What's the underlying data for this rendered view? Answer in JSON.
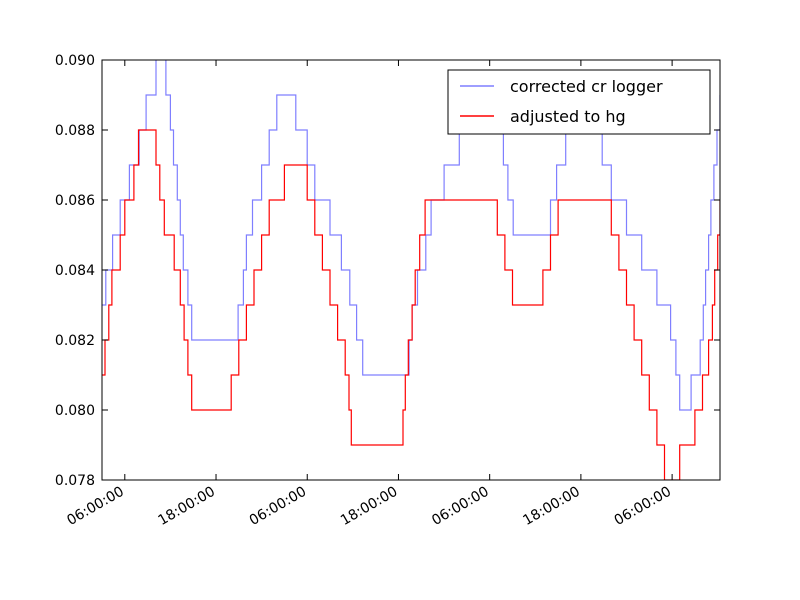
{
  "chart_data": {
    "type": "line",
    "title": "",
    "xlabel": "",
    "ylabel": "",
    "ylim": [
      0.078,
      0.09
    ],
    "y_ticks": [
      0.078,
      0.08,
      0.082,
      0.084,
      0.086,
      0.088,
      0.09
    ],
    "y_tick_labels": [
      "0.078",
      "0.080",
      "0.082",
      "0.084",
      "0.086",
      "0.088",
      "0.090"
    ],
    "x_axis_unit": "hours",
    "xlim": [
      3.0,
      84.3
    ],
    "x_ticks": [
      6,
      18,
      30,
      42,
      54,
      66,
      78
    ],
    "x_tick_labels": [
      "06:00:00",
      "18:00:00",
      "06:00:00",
      "18:00:00",
      "06:00:00",
      "18:00:00",
      "06:00:00"
    ],
    "legend": {
      "position": "upper right",
      "entries": [
        "corrected cr logger",
        "adjusted to hg"
      ]
    },
    "series": [
      {
        "name": "corrected cr logger",
        "color": "#7f7fff",
        "x": [
          3.0,
          3.2,
          3.5,
          4.0,
          4.4,
          5.0,
          5.4,
          6.0,
          6.6,
          7.2,
          7.9,
          8.2,
          8.8,
          9.6,
          10.1,
          10.6,
          11.4,
          12.0,
          12.4,
          12.9,
          13.3,
          13.7,
          14.3,
          14.8,
          16.0,
          20.0,
          20.9,
          21.6,
          22.0,
          22.4,
          22.8,
          23.4,
          24.0,
          24.5,
          25.0,
          25.5,
          26.0,
          26.6,
          27.2,
          27.8,
          28.5,
          30.0,
          31.0,
          33.0,
          34.5,
          35.6,
          36.5,
          37.0,
          37.3,
          37.7,
          38.2,
          39.0,
          43.0,
          43.4,
          43.8,
          44.5,
          45.0,
          45.6,
          46.3,
          48.0,
          50.0,
          52.0,
          54.5,
          55.2,
          55.8,
          56.4,
          57.1,
          58.0,
          59.5,
          60.5,
          61.2,
          62.0,
          62.8,
          64.0,
          66.0,
          68.0,
          68.8,
          70.0,
          72.0,
          74.0,
          76.0,
          77.8,
          78.5,
          79.0,
          80.5,
          81.3,
          81.7,
          82.1,
          82.4,
          82.8,
          83.1,
          83.5,
          83.9,
          84.3
        ],
        "y": [
          0.083,
          0.083,
          0.084,
          0.084,
          0.085,
          0.085,
          0.086,
          0.086,
          0.087,
          0.087,
          0.088,
          0.088,
          0.089,
          0.089,
          0.0902,
          0.0902,
          0.089,
          0.088,
          0.087,
          0.086,
          0.085,
          0.084,
          0.083,
          0.082,
          0.082,
          0.082,
          0.083,
          0.084,
          0.085,
          0.085,
          0.086,
          0.086,
          0.087,
          0.087,
          0.088,
          0.088,
          0.089,
          0.089,
          0.089,
          0.089,
          0.088,
          0.087,
          0.086,
          0.085,
          0.084,
          0.083,
          0.082,
          0.082,
          0.081,
          0.081,
          0.081,
          0.081,
          0.081,
          0.082,
          0.083,
          0.084,
          0.084,
          0.085,
          0.086,
          0.087,
          0.088,
          0.089,
          0.089,
          0.088,
          0.087,
          0.086,
          0.085,
          0.085,
          0.085,
          0.085,
          0.085,
          0.086,
          0.087,
          0.088,
          0.089,
          0.088,
          0.087,
          0.086,
          0.085,
          0.084,
          0.083,
          0.082,
          0.081,
          0.08,
          0.081,
          0.081,
          0.082,
          0.083,
          0.084,
          0.085,
          0.086,
          0.087,
          0.088,
          0.089
        ]
      },
      {
        "name": "adjusted to hg",
        "color": "#ff0000",
        "x": [
          3.0,
          3.4,
          3.9,
          4.3,
          4.8,
          5.4,
          6.0,
          6.6,
          7.2,
          7.8,
          8.4,
          9.0,
          9.6,
          10.1,
          10.6,
          11.2,
          12.5,
          13.3,
          13.8,
          14.3,
          14.8,
          15.3,
          16.0,
          17.0,
          17.5,
          17.8,
          18.0,
          18.5,
          19.0,
          20.0,
          21.0,
          22.0,
          23.0,
          24.0,
          25.0,
          26.0,
          27.0,
          27.8,
          29.0,
          30.0,
          31.0,
          32.0,
          33.0,
          34.0,
          35.0,
          35.5,
          35.8,
          36.0,
          36.3,
          36.8,
          37.5,
          38.2,
          39.0,
          42.5,
          42.6,
          42.9,
          43.3,
          43.8,
          44.2,
          44.8,
          45.5,
          46.0,
          47.0,
          48.0,
          49.0,
          50.0,
          51.0,
          52.0,
          52.9,
          53.5,
          54.0,
          55.0,
          56.0,
          57.0,
          58.0,
          59.0,
          60.0,
          61.0,
          62.0,
          63.0,
          64.0,
          65.0,
          66.0,
          67.0,
          68.0,
          69.0,
          70.0,
          71.0,
          72.0,
          73.0,
          74.0,
          75.0,
          76.0,
          77.0,
          78.0,
          79.0,
          80.0,
          81.0,
          82.0,
          82.8,
          83.3,
          83.6,
          84.0,
          84.3
        ],
        "y": [
          0.081,
          0.082,
          0.083,
          0.084,
          0.084,
          0.085,
          0.086,
          0.086,
          0.087,
          0.088,
          0.088,
          0.088,
          0.088,
          0.087,
          0.086,
          0.085,
          0.084,
          0.083,
          0.082,
          0.081,
          0.08,
          0.08,
          0.08,
          0.08,
          0.08,
          0.08,
          0.08,
          0.08,
          0.08,
          0.081,
          0.082,
          0.083,
          0.084,
          0.085,
          0.086,
          0.086,
          0.087,
          0.087,
          0.087,
          0.086,
          0.085,
          0.084,
          0.083,
          0.082,
          0.081,
          0.08,
          0.079,
          0.079,
          0.079,
          0.079,
          0.079,
          0.079,
          0.079,
          0.079,
          0.08,
          0.081,
          0.082,
          0.083,
          0.084,
          0.085,
          0.086,
          0.086,
          0.086,
          0.086,
          0.086,
          0.086,
          0.086,
          0.086,
          0.086,
          0.086,
          0.086,
          0.085,
          0.084,
          0.083,
          0.083,
          0.083,
          0.083,
          0.084,
          0.085,
          0.086,
          0.086,
          0.086,
          0.086,
          0.086,
          0.086,
          0.086,
          0.085,
          0.084,
          0.083,
          0.082,
          0.081,
          0.08,
          0.079,
          0.078,
          0.078,
          0.079,
          0.079,
          0.08,
          0.081,
          0.082,
          0.083,
          0.084,
          0.085,
          0.086
        ]
      }
    ]
  }
}
